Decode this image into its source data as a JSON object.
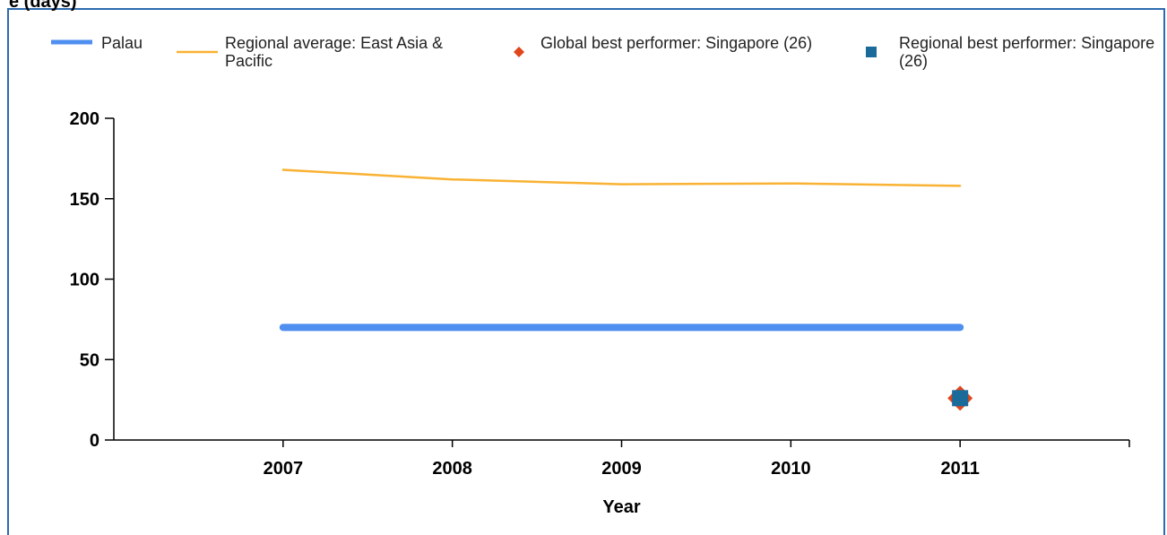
{
  "chart_data": {
    "type": "line",
    "title": "e (days)",
    "x_label": "Year",
    "x": [
      2007,
      2008,
      2009,
      2010,
      2011
    ],
    "xlim": [
      2006,
      2012
    ],
    "xticks": [
      2007,
      2008,
      2009,
      2010,
      2011
    ],
    "ylim": [
      0,
      200
    ],
    "yticks": [
      0,
      50,
      100,
      150,
      200
    ],
    "legend": "top",
    "series": [
      {
        "name": "Palau",
        "color": "#4f8ff0",
        "marker": "line-thick",
        "values": [
          70,
          70,
          70,
          70,
          70
        ]
      },
      {
        "name": "Regional average: East Asia & Pacific",
        "color": "#f9b233",
        "marker": "line",
        "values": [
          168,
          162,
          159,
          159.5,
          158
        ]
      },
      {
        "name": "Global best performer: Singapore (26)",
        "color": "#e0461b",
        "marker": "diamond",
        "values": [
          null,
          null,
          null,
          null,
          26
        ]
      },
      {
        "name": "Regional best performer: Singapore (26)",
        "color": "#1a6a9a",
        "marker": "square",
        "values": [
          null,
          null,
          null,
          null,
          26
        ]
      }
    ]
  }
}
